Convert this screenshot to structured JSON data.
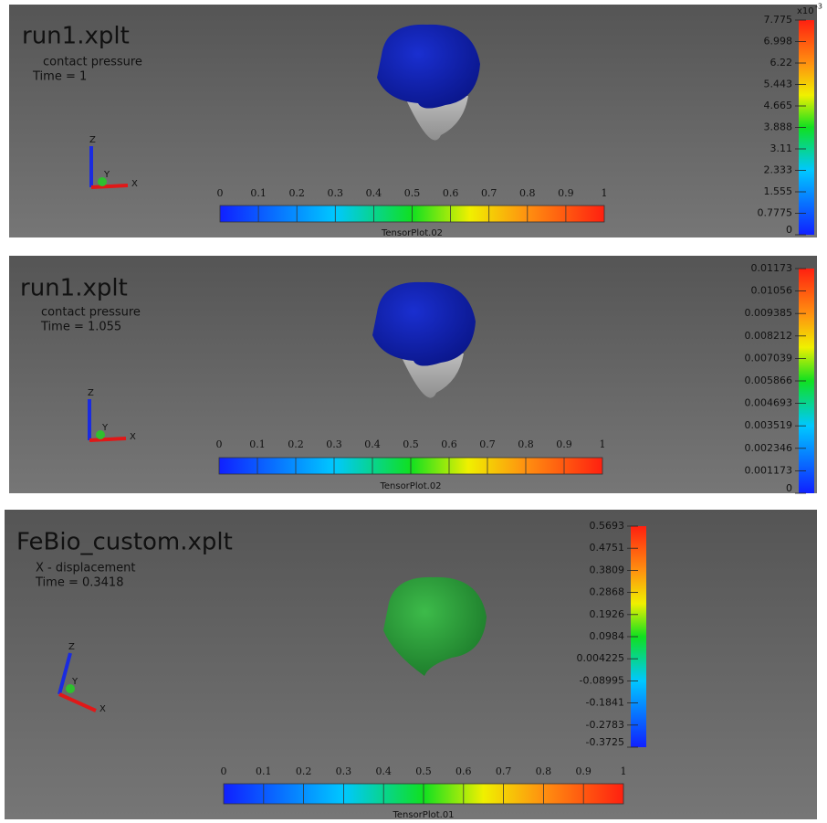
{
  "panels": [
    {
      "title": "run1.xplt",
      "quantity": "contact pressure",
      "time": "Time = 1",
      "legend_exponent": {
        "base": "x10",
        "power": "-3"
      },
      "legend": [
        "7.775",
        "6.998",
        "6.22",
        "5.443",
        "4.665",
        "3.888",
        "3.11",
        "2.333",
        "1.555",
        "0.7775",
        "0"
      ],
      "scale": [
        "0",
        "0.1",
        "0.2",
        "0.3",
        "0.4",
        "0.5",
        "0.6",
        "0.7",
        "0.8",
        "0.9",
        "1"
      ],
      "scale_name": "TensorPlot.02",
      "axes": [
        "X",
        "Y",
        "Z"
      ]
    },
    {
      "title": "run1.xplt",
      "quantity": "contact pressure",
      "time": "Time = 1.055",
      "legend": [
        "0.01173",
        "0.01056",
        "0.009385",
        "0.008212",
        "0.007039",
        "0.005866",
        "0.004693",
        "0.003519",
        "0.002346",
        "0.001173",
        "0"
      ],
      "scale": [
        "0",
        "0.1",
        "0.2",
        "0.3",
        "0.4",
        "0.5",
        "0.6",
        "0.7",
        "0.8",
        "0.9",
        "1"
      ],
      "scale_name": "TensorPlot.02",
      "axes": [
        "X",
        "Y",
        "Z"
      ]
    },
    {
      "title": "FeBio_custom.xplt",
      "quantity": "X - displacement",
      "time": "Time = 0.3418",
      "legend": [
        "0.5693",
        "0.4751",
        "0.3809",
        "0.2868",
        "0.1926",
        "0.0984",
        "0.004225",
        "-0.08995",
        "-0.1841",
        "-0.2783",
        "-0.3725"
      ],
      "scale": [
        "0",
        "0.1",
        "0.2",
        "0.3",
        "0.4",
        "0.5",
        "0.6",
        "0.7",
        "0.8",
        "0.9",
        "1"
      ],
      "scale_name": "TensorPlot.01",
      "axes": [
        "X",
        "Y",
        "Z"
      ]
    }
  ]
}
